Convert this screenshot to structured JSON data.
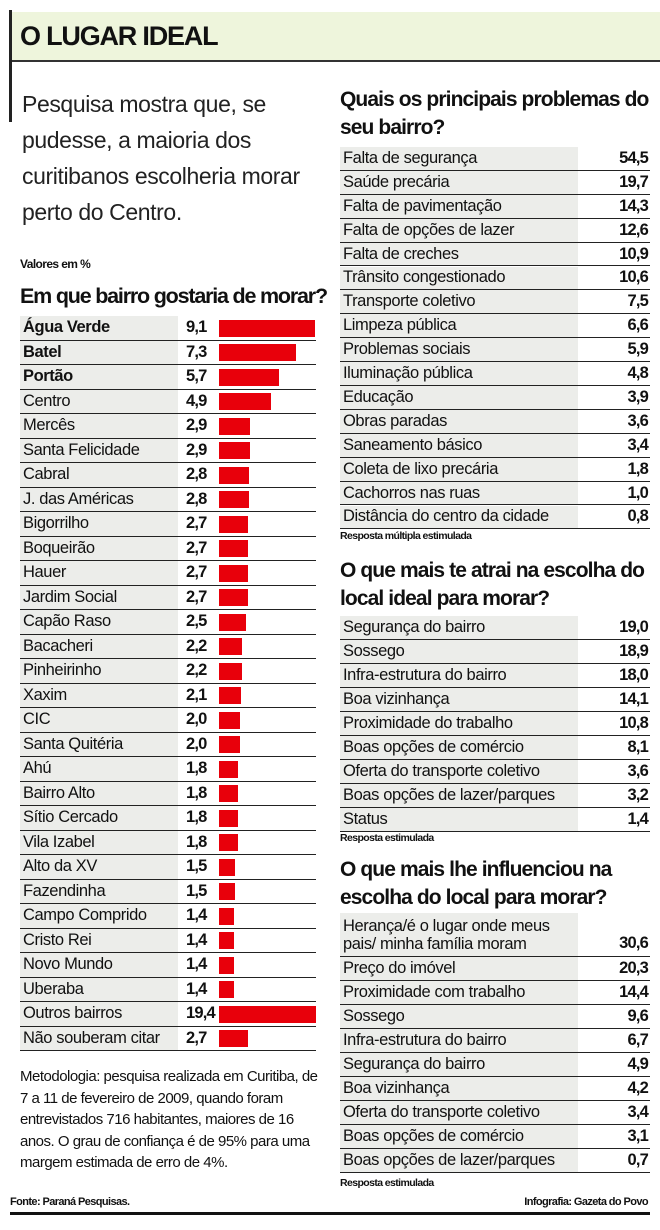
{
  "title": "O LUGAR IDEAL",
  "intro": "Pesquisa mostra que, se pudesse, a maioria dos curitibanos escolheria morar perto do Centro.",
  "units_note": "Valores em %",
  "colors": {
    "bar": "#e8000b",
    "label_cell": "#ecedea",
    "title_bg": "#eef5dc"
  },
  "chart_data": [
    {
      "type": "bar",
      "orientation": "horizontal",
      "title": "Em que bairro gostaria de morar?",
      "unit": "%",
      "categories": [
        "Água Verde",
        "Batel",
        "Portão",
        "Centro",
        "Mercês",
        "Santa Felicidade",
        "Cabral",
        "J. das Américas",
        "Bigorrilho",
        "Boqueirão",
        "Hauer",
        "Jardim Social",
        "Capão Raso",
        "Bacacheri",
        "Pinheirinho",
        "Xaxim",
        "CIC",
        "Santa Quitéria",
        "Ahú",
        "Bairro Alto",
        "Sítio Cercado",
        "Vila Izabel",
        "Alto da XV",
        "Fazendinha",
        "Campo Comprido",
        "Cristo Rei",
        "Novo Mundo",
        "Uberaba",
        "Outros bairros",
        "Não souberam citar"
      ],
      "labels": [
        "9,1",
        "7,3",
        "5,7",
        "4,9",
        "2,9",
        "2,9",
        "2,8",
        "2,8",
        "2,7",
        "2,7",
        "2,7",
        "2,7",
        "2,5",
        "2,2",
        "2,2",
        "2,1",
        "2,0",
        "2,0",
        "1,8",
        "1,8",
        "1,8",
        "1,8",
        "1,5",
        "1,5",
        "1,4",
        "1,4",
        "1,4",
        "1,4",
        "19,4",
        "2,7"
      ],
      "values": [
        9.1,
        7.3,
        5.7,
        4.9,
        2.9,
        2.9,
        2.8,
        2.8,
        2.7,
        2.7,
        2.7,
        2.7,
        2.5,
        2.2,
        2.2,
        2.1,
        2.0,
        2.0,
        1.8,
        1.8,
        1.8,
        1.8,
        1.5,
        1.5,
        1.4,
        1.4,
        1.4,
        1.4,
        19.4,
        2.7
      ],
      "bold_categories": [
        "Água Verde",
        "Batel",
        "Portão"
      ]
    },
    {
      "type": "table",
      "title": "Quais os principais problemas do seu bairro?",
      "note": "Resposta múltipla estimulada",
      "rows": [
        [
          "Falta de segurança",
          "54,5"
        ],
        [
          "Saúde precária",
          "19,7"
        ],
        [
          "Falta de pavimentação",
          "14,3"
        ],
        [
          "Falta de opções  de lazer",
          "12,6"
        ],
        [
          "Falta de creches",
          "10,9"
        ],
        [
          "Trânsito congestionado",
          "10,6"
        ],
        [
          "Transporte coletivo",
          "7,5"
        ],
        [
          "Limpeza pública",
          "6,6"
        ],
        [
          "Problemas sociais",
          "5,9"
        ],
        [
          "Iluminação pública",
          "4,8"
        ],
        [
          "Educação",
          "3,9"
        ],
        [
          "Obras paradas",
          "3,6"
        ],
        [
          "Saneamento básico",
          "3,4"
        ],
        [
          "Coleta de lixo precária",
          "1,8"
        ],
        [
          "Cachorros nas ruas",
          "1,0"
        ],
        [
          "Distância do centro da cidade",
          "0,8"
        ]
      ]
    },
    {
      "type": "table",
      "title": "O que mais te atrai na escolha do local ideal para morar?",
      "note": "Resposta estimulada",
      "rows": [
        [
          "Segurança do bairro",
          "19,0"
        ],
        [
          "Sossego",
          "18,9"
        ],
        [
          "Infra-estrutura do bairro",
          "18,0"
        ],
        [
          "Boa vizinhança",
          "14,1"
        ],
        [
          "Proximidade do trabalho",
          "10,8"
        ],
        [
          "Boas opções de comércio",
          "8,1"
        ],
        [
          "Oferta do transporte coletivo",
          "3,6"
        ],
        [
          "Boas opções de lazer/parques",
          "3,2"
        ],
        [
          "Status",
          "1,4"
        ]
      ]
    },
    {
      "type": "table",
      "title": "O que mais lhe influenciou na escolha do local para morar?",
      "note": "Resposta estimulada",
      "rows": [
        [
          "Herança/é o lugar onde meus pais/ minha família moram",
          "30,6"
        ],
        [
          "Preço do imóvel",
          "20,3"
        ],
        [
          "Proximidade com trabalho",
          "14,4"
        ],
        [
          "Sossego",
          "9,6"
        ],
        [
          "Infra-estrutura do bairro",
          "6,7"
        ],
        [
          "Segurança do bairro",
          "4,9"
        ],
        [
          "Boa vizinhança",
          "4,2"
        ],
        [
          "Oferta do transporte coletivo",
          "3,4"
        ],
        [
          "Boas opções de comércio",
          "3,1"
        ],
        [
          "Boas opções de lazer/parques",
          "0,7"
        ]
      ]
    }
  ],
  "methodology": "Metodologia: pesquisa realizada em Curitiba, de 7 a 11 de fevereiro de 2009, quando foram entrevistados 716 habitantes, maiores de 16 anos. O grau de confiança é de 95% para uma margem estimada de erro de 4%.",
  "source": "Fonte: Paraná Pesquisas.",
  "credit": "Infografia: Gazeta do Povo"
}
